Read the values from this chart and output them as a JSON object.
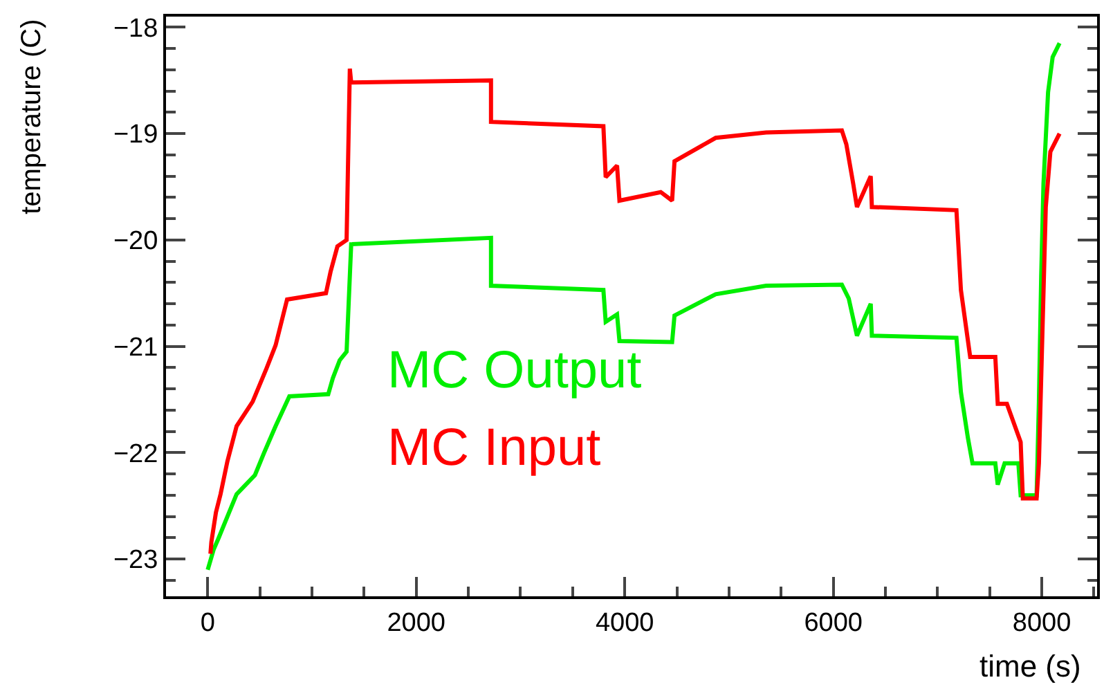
{
  "chart_data": {
    "type": "line",
    "xlabel": "time (s)",
    "ylabel": "temperature (C)",
    "xlim": [
      -400,
      8530
    ],
    "ylim": [
      -23.35,
      -17.9
    ],
    "xticks": [
      0,
      2000,
      4000,
      6000,
      8000
    ],
    "yticks": [
      -23,
      -22,
      -21,
      -20,
      -19,
      -18
    ],
    "marker": "none",
    "line_style": "solid",
    "series": [
      {
        "name": "MC Output",
        "color": "#00ee00",
        "x": [
          0,
          57,
          101,
          189,
          277,
          453,
          541,
          651,
          783,
          1156,
          1200,
          1266,
          1332,
          1376,
          2717,
          2717,
          3795,
          3817,
          3926,
          3949,
          4454,
          4477,
          4872,
          5356,
          6082,
          6148,
          6227,
          6359,
          6370,
          7181,
          7224,
          7291,
          7335,
          7554,
          7577,
          7643,
          7775,
          7797,
          7950,
          7972,
          7994,
          8016,
          8060,
          8104,
          8170
        ],
        "values": [
          -23.1,
          -22.91,
          -22.81,
          -22.6,
          -22.39,
          -22.21,
          -22.0,
          -21.75,
          -21.47,
          -21.45,
          -21.3,
          -21.13,
          -21.05,
          -20.04,
          -19.98,
          -20.43,
          -20.47,
          -20.77,
          -20.7,
          -20.95,
          -20.96,
          -20.71,
          -20.51,
          -20.43,
          -20.42,
          -20.55,
          -20.9,
          -20.6,
          -20.9,
          -20.92,
          -21.43,
          -21.86,
          -22.1,
          -22.1,
          -22.3,
          -22.1,
          -22.1,
          -22.4,
          -22.4,
          -21.52,
          -20.34,
          -19.47,
          -18.61,
          -18.28,
          -18.15
        ]
      },
      {
        "name": "MC Input",
        "color": "#ff0000",
        "x": [
          26,
          35,
          79,
          123,
          189,
          277,
          431,
          563,
          651,
          761,
          1134,
          1178,
          1244,
          1332,
          1363,
          1376,
          2717,
          2717,
          3795,
          3817,
          3926,
          3949,
          4345,
          4454,
          4477,
          4872,
          5356,
          6082,
          6125,
          6191,
          6227,
          6359,
          6370,
          7181,
          7224,
          7313,
          7554,
          7577,
          7665,
          7797,
          7818,
          7950,
          7972,
          8038,
          8082,
          8170
        ],
        "values": [
          -22.95,
          -22.84,
          -22.56,
          -22.39,
          -22.08,
          -21.75,
          -21.52,
          -21.21,
          -20.99,
          -20.56,
          -20.5,
          -20.3,
          -20.06,
          -20.0,
          -18.39,
          -18.52,
          -18.5,
          -18.89,
          -18.93,
          -19.41,
          -19.3,
          -19.63,
          -19.55,
          -19.63,
          -19.26,
          -19.04,
          -18.99,
          -18.97,
          -19.1,
          -19.47,
          -19.69,
          -19.4,
          -19.69,
          -19.72,
          -20.47,
          -21.1,
          -21.1,
          -21.54,
          -21.54,
          -21.9,
          -22.43,
          -22.43,
          -22.1,
          -19.69,
          -19.17,
          -19.0
        ]
      }
    ]
  }
}
